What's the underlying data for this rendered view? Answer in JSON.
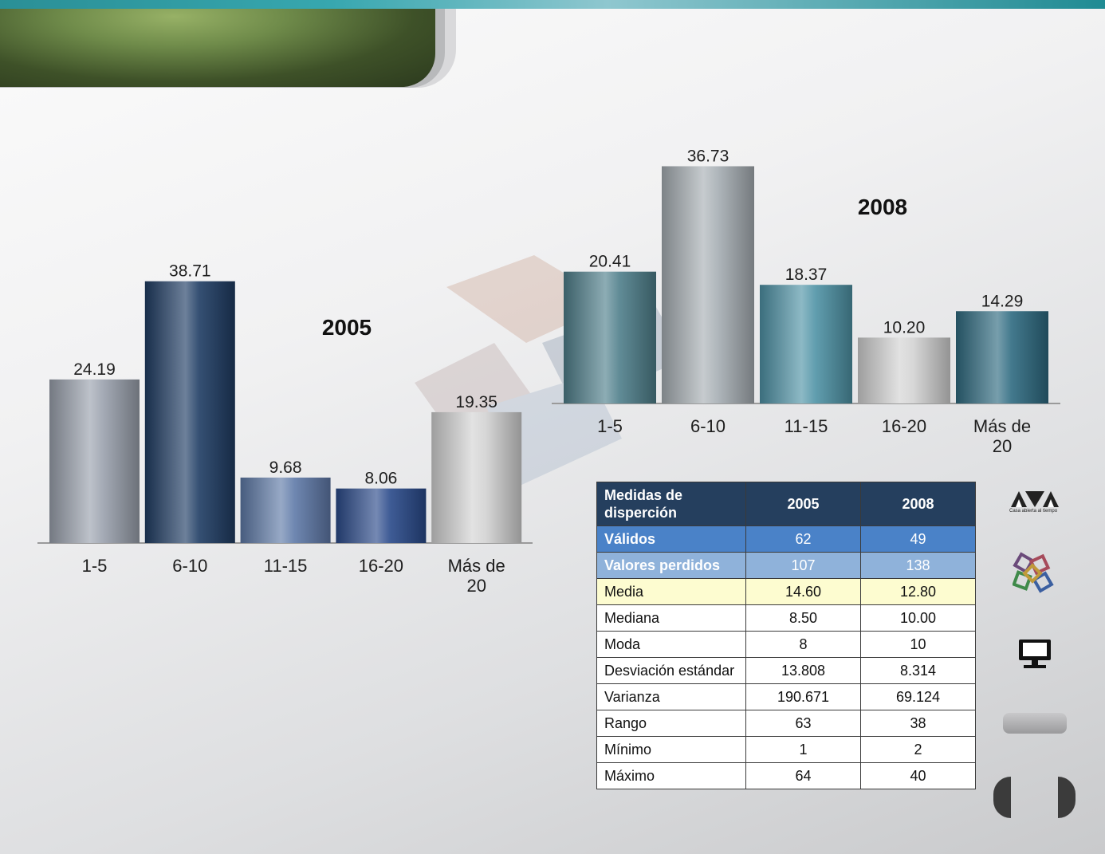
{
  "chart_data": [
    {
      "type": "bar",
      "title": "2005",
      "categories": [
        "1-5",
        "6-10",
        "11-15",
        "16-20",
        "Más de 20"
      ],
      "values": [
        24.19,
        38.71,
        9.68,
        8.06,
        19.35
      ],
      "value_labels": [
        "24.19",
        "38.71",
        "9.68",
        "8.06",
        "19.35"
      ],
      "bar_colors": [
        "#9aa1ad",
        "#1f3c63",
        "#5f7aa8",
        "#2a4a8a",
        "#d2d2d2"
      ],
      "grid": false,
      "legend": "none"
    },
    {
      "type": "bar",
      "title": "2008",
      "categories": [
        "1-5",
        "6-10",
        "11-15",
        "16-20",
        "Más de 20"
      ],
      "values": [
        20.41,
        36.73,
        18.37,
        10.2,
        14.29
      ],
      "value_labels": [
        "20.41",
        "36.73",
        "18.37",
        "10.20",
        "14.29"
      ],
      "bar_colors": [
        "#4f7f8b",
        "#a7afb4",
        "#4f93a6",
        "#d2d2d2",
        "#2e6a80"
      ],
      "grid": false,
      "legend": "none"
    }
  ],
  "table": {
    "header": [
      "Medidas de disperción",
      "2005",
      "2008"
    ],
    "rows": [
      {
        "label": "Válidos",
        "v2005": "62",
        "v2008": "49"
      },
      {
        "label": "Valores perdidos",
        "v2005": "107",
        "v2008": "138"
      },
      {
        "label": "Media",
        "v2005": "14.60",
        "v2008": "12.80"
      },
      {
        "label": "Mediana",
        "v2005": "8.50",
        "v2008": "10.00"
      },
      {
        "label": "Moda",
        "v2005": "8",
        "v2008": "10"
      },
      {
        "label": "Desviación estándar",
        "v2005": "13.808",
        "v2008": "8.314"
      },
      {
        "label": "Varianza",
        "v2005": "190.671",
        "v2008": "69.124"
      },
      {
        "label": "Rango",
        "v2005": "63",
        "v2008": "38"
      },
      {
        "label": "Mínimo",
        "v2005": "1",
        "v2008": "2"
      },
      {
        "label": "Máximo",
        "v2005": "64",
        "v2008": "40"
      }
    ]
  },
  "sidebar": {
    "logo_caption": "Casa abierta al tiempo",
    "icons": [
      "uam-logo-icon",
      "cluster-icon",
      "monitor-icon"
    ]
  },
  "colors": {
    "accent_teal": "#2a8f96",
    "header_green": "#6f8b4a",
    "table_header": "#253f5e",
    "row_valid": "#4a82c8",
    "row_lost": "#8fb2da",
    "row_media": "#fdfcd0"
  }
}
